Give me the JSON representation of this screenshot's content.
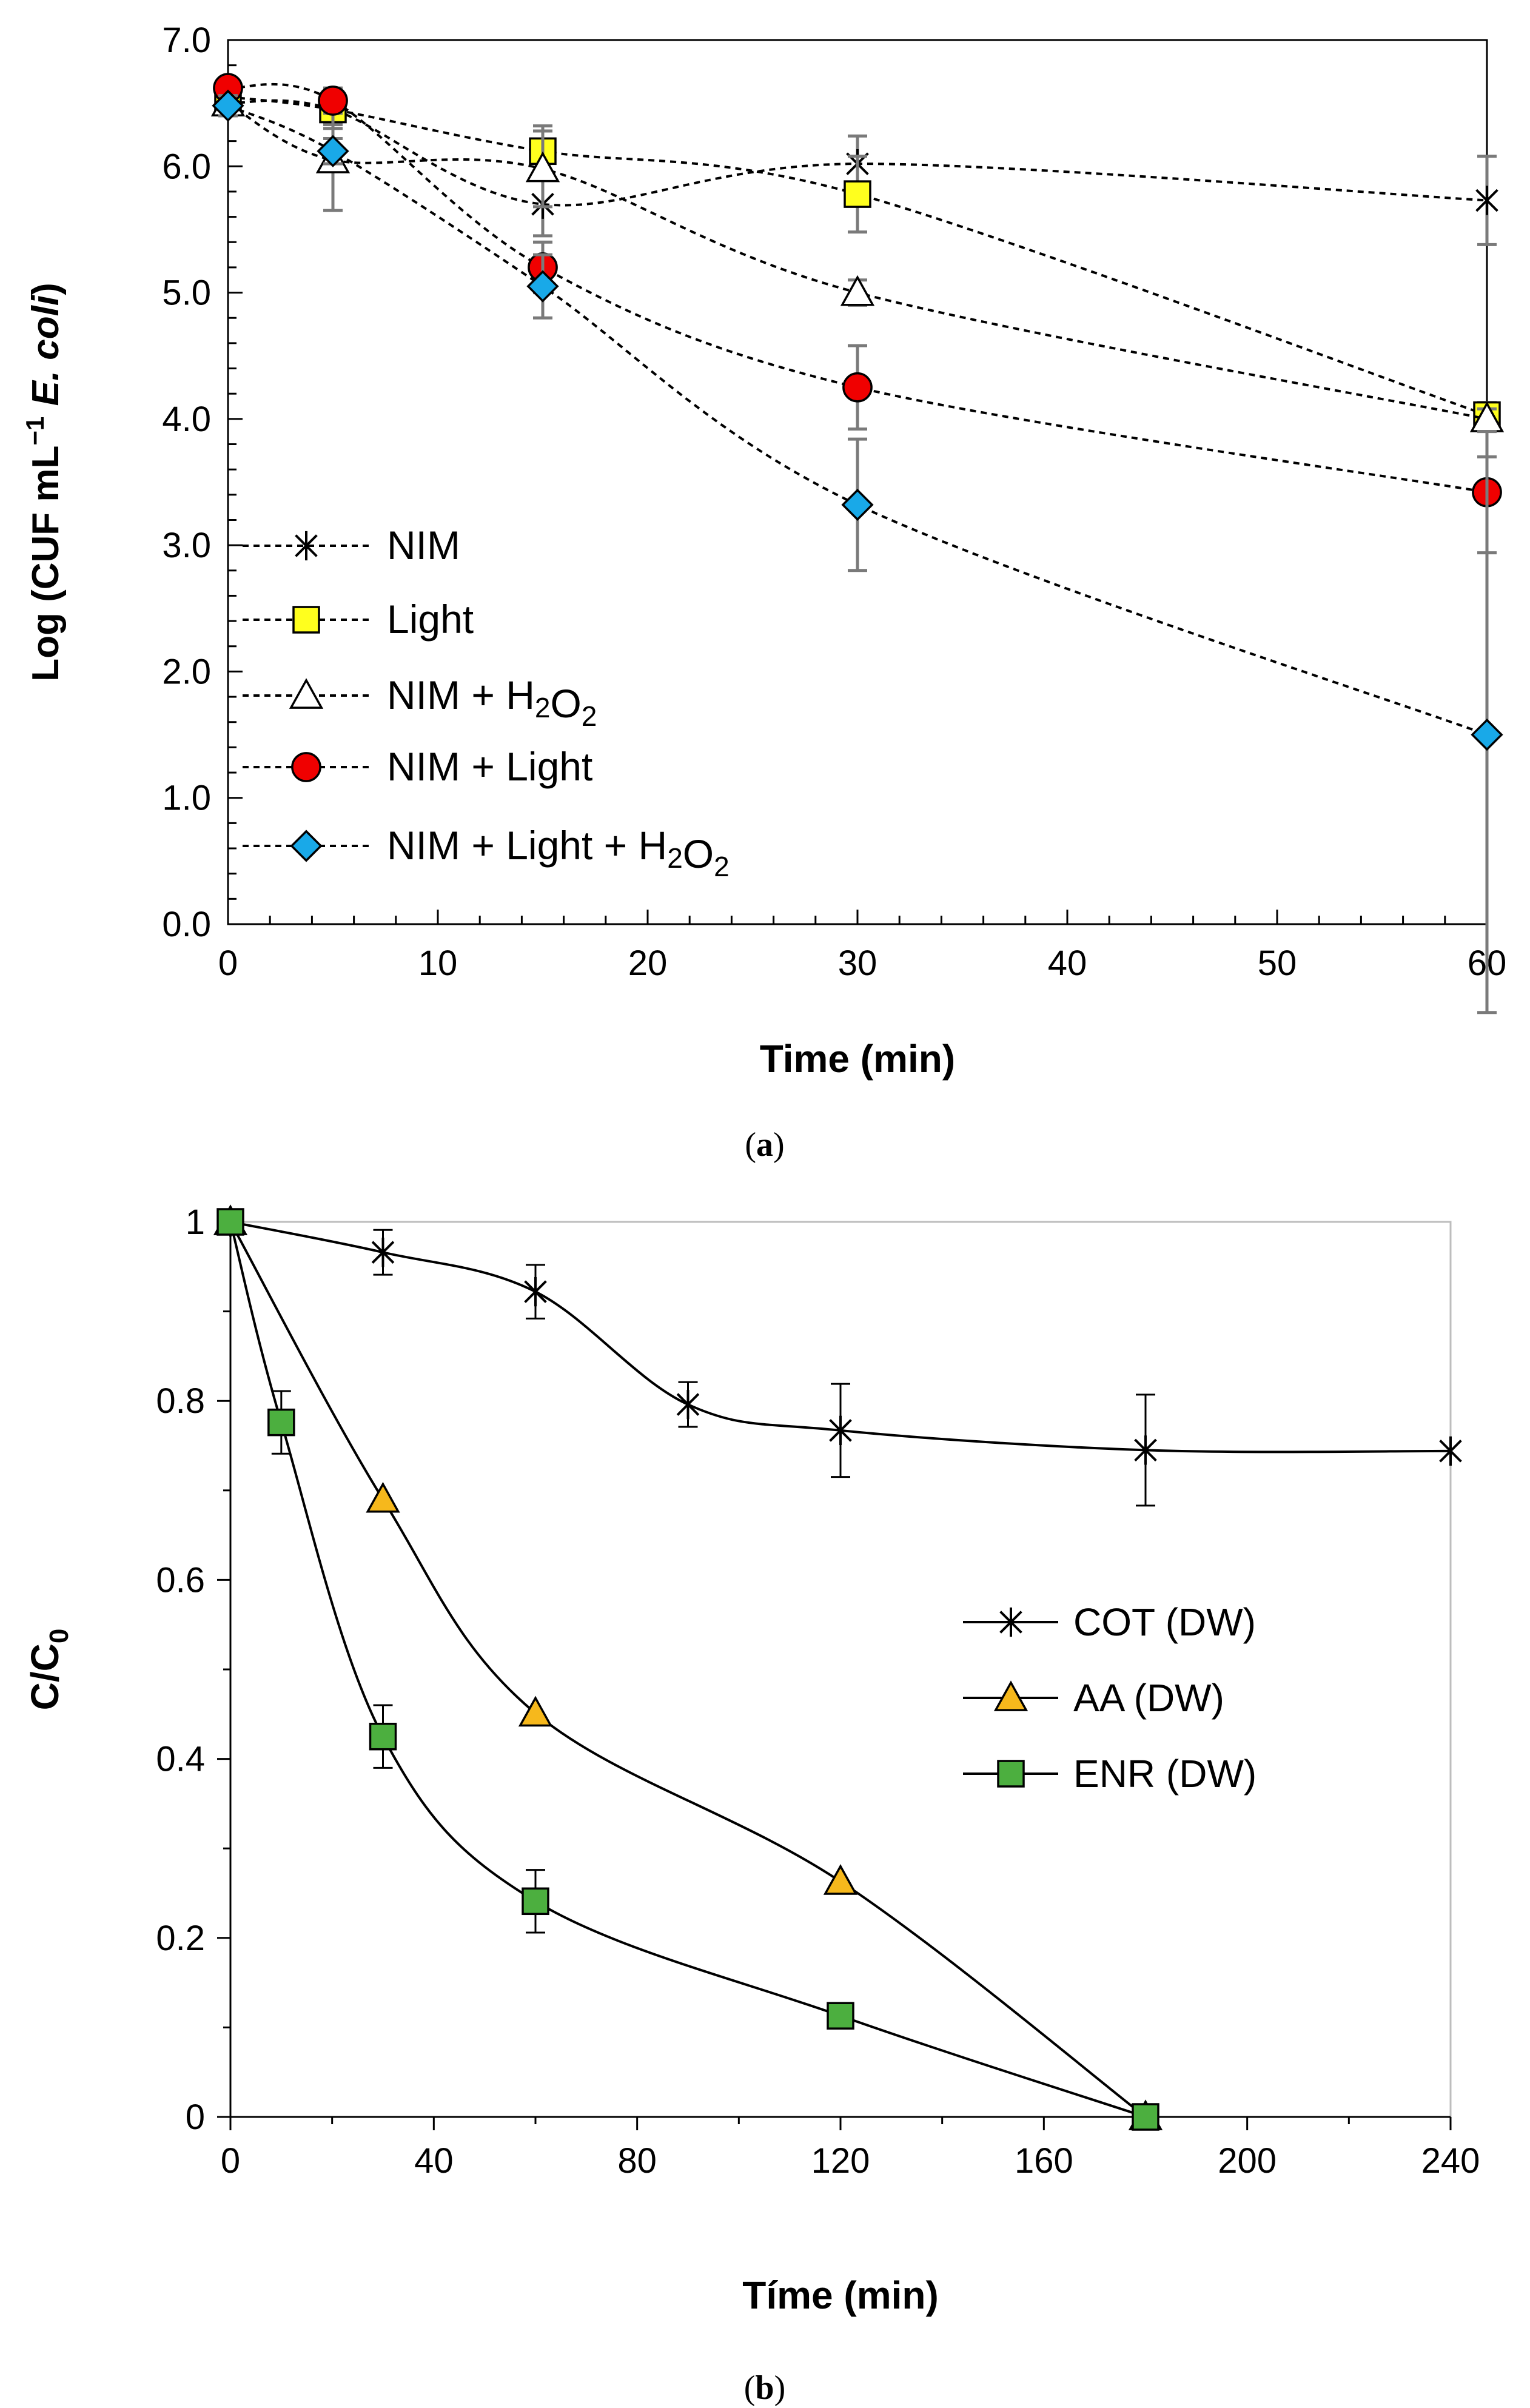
{
  "chart_data": [
    {
      "id": "a",
      "type": "line",
      "caption": "a",
      "xlabel": "Time (min)",
      "ylabel_parts": {
        "pre": "Log (CUF mL",
        "sup": "−1",
        "mid": " ",
        "italic": "E. coli",
        "post": ")"
      },
      "xlim": [
        0,
        60
      ],
      "ylim": [
        0,
        7
      ],
      "xticks": [
        0,
        10,
        20,
        30,
        40,
        50,
        60
      ],
      "yticks": [
        "0.0",
        "1.0",
        "2.0",
        "3.0",
        "4.0",
        "5.0",
        "6.0",
        "7.0"
      ],
      "line_style": "dashed",
      "legend_position": "lower-left",
      "series": [
        {
          "name": "NIM",
          "label_parts": [
            "NIM"
          ],
          "marker": "asterisk",
          "color": "#000000",
          "x": [
            0,
            5,
            15,
            30,
            60
          ],
          "y": [
            6.5,
            6.45,
            5.7,
            6.02,
            5.73
          ],
          "err": [
            0.1,
            0.15,
            0.25,
            0.22,
            0.35
          ]
        },
        {
          "name": "Light",
          "label_parts": [
            "Light"
          ],
          "marker": "square",
          "color": "#FFFF1E",
          "x": [
            0,
            5,
            15,
            30,
            60
          ],
          "y": [
            6.55,
            6.45,
            6.12,
            5.78,
            4.03
          ],
          "err": [
            0.08,
            0.12,
            0.2,
            0.3,
            0.1
          ]
        },
        {
          "name": "NIM + H2O2",
          "label_parts": [
            "NIM + H",
            {
              "sub": "2"
            },
            "O",
            {
              "sub": "2"
            }
          ],
          "marker": "triangle",
          "color": "#FFFFFF",
          "x": [
            0,
            5,
            15,
            30,
            60
          ],
          "y": [
            6.5,
            6.05,
            5.98,
            5.0,
            4.0
          ],
          "err": [
            0.08,
            0.4,
            0.3,
            0.1,
            0.08
          ]
        },
        {
          "name": "NIM + Light",
          "label_parts": [
            "NIM + Light"
          ],
          "marker": "circle",
          "color": "#F00000",
          "x": [
            0,
            5,
            15,
            30,
            60
          ],
          "y": [
            6.62,
            6.52,
            5.2,
            4.25,
            3.42
          ],
          "err": [
            0.05,
            0.1,
            0.2,
            0.33,
            0.48
          ]
        },
        {
          "name": "NIM + Light + H2O2",
          "label_parts": [
            "NIM + Light + H",
            {
              "sub": "2"
            },
            "O",
            {
              "sub": "2"
            }
          ],
          "marker": "diamond",
          "color": "#19A9E8",
          "x": [
            0,
            5,
            15,
            30,
            60
          ],
          "y": [
            6.48,
            6.12,
            5.05,
            3.32,
            1.5
          ],
          "err": [
            0.08,
            0.1,
            0.25,
            0.52,
            2.2
          ]
        }
      ]
    },
    {
      "id": "b",
      "type": "line",
      "caption": "b",
      "xlabel": "Tíme (min)",
      "ylabel_parts": {
        "pre": "C/C",
        "sub": "0"
      },
      "xlim": [
        0,
        240
      ],
      "ylim": [
        0,
        1
      ],
      "xticks": [
        0,
        40,
        80,
        120,
        160,
        200,
        240
      ],
      "yticks": [
        "0",
        "0.2",
        "0.4",
        "0.6",
        "0.8",
        "1"
      ],
      "line_style": "solid",
      "legend_position": "center-right",
      "series": [
        {
          "name": "COT (DW)",
          "marker": "asterisk",
          "color": "#000000",
          "x": [
            0,
            30,
            60,
            90,
            120,
            180,
            240
          ],
          "y": [
            1.0,
            0.966,
            0.922,
            0.796,
            0.767,
            0.745,
            0.744
          ],
          "err": [
            0,
            0.025,
            0.03,
            0.025,
            0.052,
            0.062,
            0
          ]
        },
        {
          "name": "AA (DW)",
          "marker": "triangle",
          "color": "#F6B81C",
          "x": [
            0,
            30,
            60,
            120,
            180
          ],
          "y": [
            1.0,
            0.69,
            0.451,
            0.263,
            0.0
          ],
          "err": [
            0,
            0,
            0,
            0,
            0
          ]
        },
        {
          "name": "ENR (DW)",
          "marker": "square",
          "color": "#4CAF3F",
          "x": [
            0,
            10,
            30,
            60,
            120,
            180
          ],
          "y": [
            1.0,
            0.776,
            0.425,
            0.241,
            0.113,
            0.0
          ],
          "err": [
            0,
            0.035,
            0.035,
            0.035,
            0,
            0
          ]
        }
      ]
    }
  ]
}
